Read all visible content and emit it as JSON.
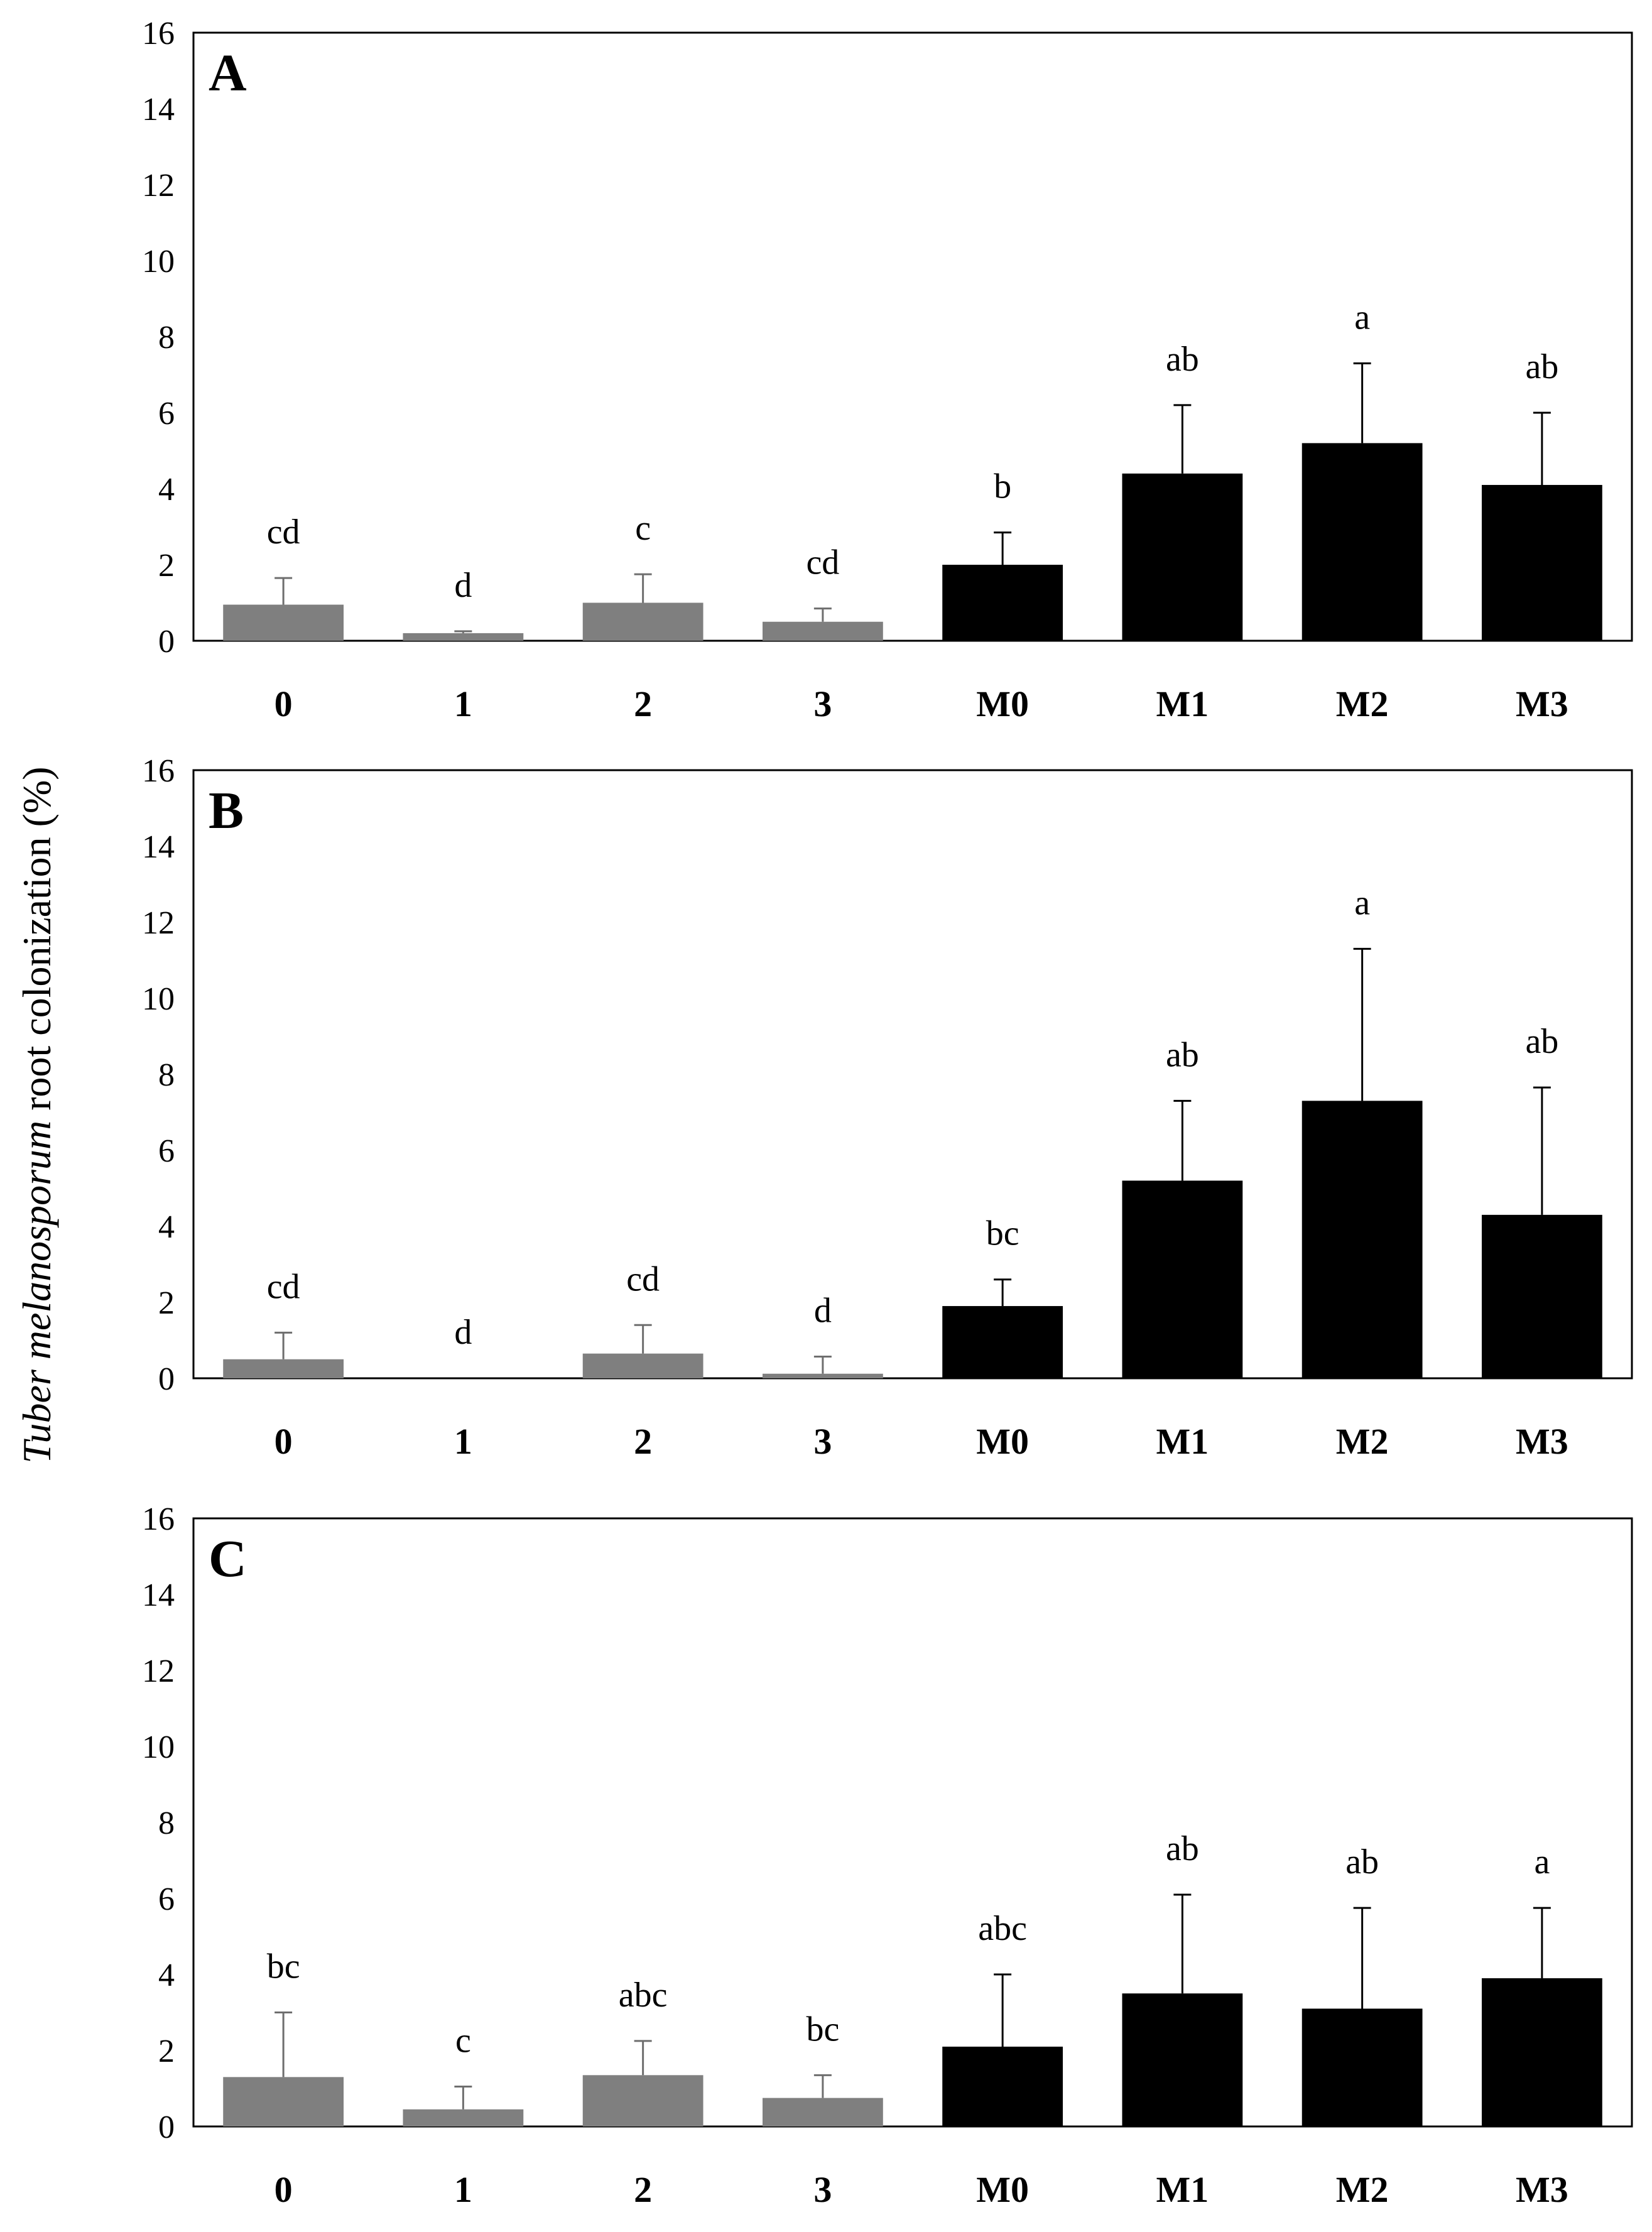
{
  "chart_data": [
    {
      "type": "bar",
      "panel": "A",
      "categories": [
        "0",
        "1",
        "2",
        "3",
        "M0",
        "M1",
        "M2",
        "M3"
      ],
      "values": [
        0.95,
        0.2,
        1.0,
        0.5,
        2.0,
        4.4,
        5.2,
        4.1
      ],
      "errors": [
        0.7,
        0.05,
        0.75,
        0.35,
        0.85,
        1.8,
        2.1,
        1.9
      ],
      "significance": [
        "cd",
        "d",
        "c",
        "cd",
        "b",
        "ab",
        "a",
        "ab"
      ],
      "bar_colors": [
        "#7f7f7f",
        "#7f7f7f",
        "#7f7f7f",
        "#7f7f7f",
        "#000000",
        "#000000",
        "#000000",
        "#000000"
      ],
      "ylim": [
        0,
        16
      ],
      "yticks": [
        0,
        2,
        4,
        6,
        8,
        10,
        12,
        14,
        16
      ]
    },
    {
      "type": "bar",
      "panel": "B",
      "categories": [
        "0",
        "1",
        "2",
        "3",
        "M0",
        "M1",
        "M2",
        "M3"
      ],
      "values": [
        0.5,
        0.0,
        0.65,
        0.12,
        1.9,
        5.2,
        7.3,
        4.3
      ],
      "errors": [
        0.7,
        0.0,
        0.75,
        0.45,
        0.7,
        2.1,
        4.0,
        3.35
      ],
      "significance": [
        "cd",
        "d",
        "cd",
        "d",
        "bc",
        "ab",
        "a",
        "ab"
      ],
      "bar_colors": [
        "#7f7f7f",
        "#7f7f7f",
        "#7f7f7f",
        "#7f7f7f",
        "#000000",
        "#000000",
        "#000000",
        "#000000"
      ],
      "ylim": [
        0,
        16
      ],
      "yticks": [
        0,
        2,
        4,
        6,
        8,
        10,
        12,
        14,
        16
      ]
    },
    {
      "type": "bar",
      "panel": "C",
      "categories": [
        "0",
        "1",
        "2",
        "3",
        "M0",
        "M1",
        "M2",
        "M3"
      ],
      "values": [
        1.3,
        0.45,
        1.35,
        0.75,
        2.1,
        3.5,
        3.1,
        3.9
      ],
      "errors": [
        1.7,
        0.6,
        0.9,
        0.6,
        1.9,
        2.6,
        2.65,
        1.85
      ],
      "significance": [
        "bc",
        "c",
        "abc",
        "bc",
        "abc",
        "ab",
        "ab",
        "a"
      ],
      "bar_colors": [
        "#7f7f7f",
        "#7f7f7f",
        "#7f7f7f",
        "#7f7f7f",
        "#000000",
        "#000000",
        "#000000",
        "#000000"
      ],
      "ylim": [
        0,
        16
      ],
      "yticks": [
        0,
        2,
        4,
        6,
        8,
        10,
        12,
        14,
        16
      ]
    }
  ],
  "ylabel": {
    "italic_part": "Tuber melanosporum",
    "plain_part": " root colonization  (%)"
  }
}
